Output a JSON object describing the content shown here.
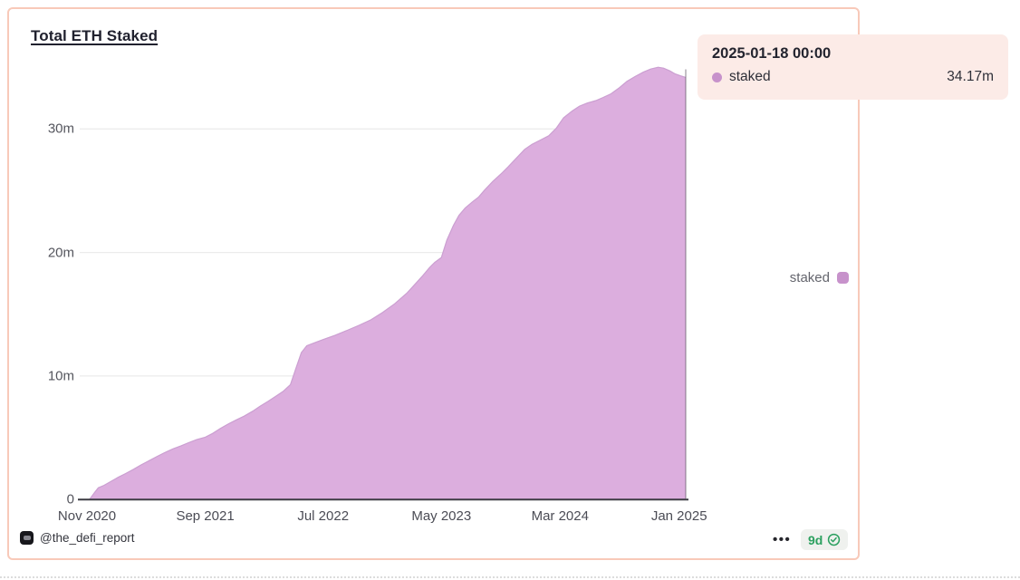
{
  "card": {
    "title": "Total ETH Staked"
  },
  "tooltip": {
    "title": "2025-01-18 00:00",
    "series": "staked",
    "value": "34.17m"
  },
  "legend": {
    "label": "staked"
  },
  "footer": {
    "handle": "@the_defi_report",
    "menu_dots": "•••",
    "age_badge": "9d"
  },
  "colors": {
    "area_fill": "#dcaede",
    "area_edge": "#cb9fd1",
    "series_swatch": "#c792cb",
    "card_border": "#f8c9b9",
    "tooltip_bg": "#fcebe7",
    "axis_line": "#3c3c43",
    "gridline": "#ececec",
    "crosshair": "#5a505f",
    "badge_green": "#2ba05f"
  },
  "chart_data": {
    "type": "area",
    "title": "Total ETH Staked",
    "series_name": "staked",
    "unit": "millions of ETH",
    "grid": true,
    "legend_position": "right",
    "ylim": [
      0,
      36.5
    ],
    "x_axis_start": "2020-11-01",
    "x_ticks": [
      {
        "label": "Nov 2020",
        "date": "2020-11-01"
      },
      {
        "label": "Sep 2021",
        "date": "2021-09-01"
      },
      {
        "label": "Jul 2022",
        "date": "2022-07-01"
      },
      {
        "label": "May 2023",
        "date": "2023-05-01"
      },
      {
        "label": "Mar 2024",
        "date": "2024-03-01"
      },
      {
        "label": "Jan 2025",
        "date": "2025-01-01"
      }
    ],
    "y_ticks": [
      {
        "label": "0",
        "value": 0
      },
      {
        "label": "10m",
        "value": 10
      },
      {
        "label": "20m",
        "value": 20
      },
      {
        "label": "30m",
        "value": 30
      }
    ],
    "hover": {
      "date": "2025-01-18 00:00",
      "value": 34.17,
      "value_label": "34.17m"
    },
    "points": [
      [
        "2020-11-08",
        0.02
      ],
      [
        "2020-11-20",
        0.55
      ],
      [
        "2020-11-30",
        0.95
      ],
      [
        "2020-12-15",
        1.15
      ],
      [
        "2021-01-01",
        1.45
      ],
      [
        "2021-01-20",
        1.8
      ],
      [
        "2021-02-08",
        2.1
      ],
      [
        "2021-03-01",
        2.45
      ],
      [
        "2021-03-20",
        2.8
      ],
      [
        "2021-04-10",
        3.15
      ],
      [
        "2021-05-01",
        3.5
      ],
      [
        "2021-05-20",
        3.8
      ],
      [
        "2021-06-10",
        4.1
      ],
      [
        "2021-07-01",
        4.35
      ],
      [
        "2021-07-20",
        4.6
      ],
      [
        "2021-08-10",
        4.85
      ],
      [
        "2021-09-01",
        5.05
      ],
      [
        "2021-09-20",
        5.35
      ],
      [
        "2021-10-10",
        5.75
      ],
      [
        "2021-11-01",
        6.15
      ],
      [
        "2021-11-20",
        6.45
      ],
      [
        "2021-12-10",
        6.75
      ],
      [
        "2022-01-01",
        7.15
      ],
      [
        "2022-01-20",
        7.55
      ],
      [
        "2022-02-10",
        7.95
      ],
      [
        "2022-03-01",
        8.35
      ],
      [
        "2022-03-20",
        8.75
      ],
      [
        "2022-04-08",
        9.3
      ],
      [
        "2022-04-22",
        10.6
      ],
      [
        "2022-05-06",
        11.9
      ],
      [
        "2022-05-20",
        12.45
      ],
      [
        "2022-06-10",
        12.7
      ],
      [
        "2022-07-01",
        12.95
      ],
      [
        "2022-08-01",
        13.3
      ],
      [
        "2022-09-01",
        13.7
      ],
      [
        "2022-10-01",
        14.1
      ],
      [
        "2022-11-01",
        14.55
      ],
      [
        "2022-12-01",
        15.15
      ],
      [
        "2023-01-01",
        15.85
      ],
      [
        "2023-02-01",
        16.7
      ],
      [
        "2023-02-20",
        17.35
      ],
      [
        "2023-03-12",
        18.05
      ],
      [
        "2023-04-01",
        18.8
      ],
      [
        "2023-04-14",
        19.2
      ],
      [
        "2023-05-01",
        19.6
      ],
      [
        "2023-05-15",
        21.0
      ],
      [
        "2023-06-01",
        22.2
      ],
      [
        "2023-06-15",
        23.0
      ],
      [
        "2023-07-01",
        23.6
      ],
      [
        "2023-07-20",
        24.1
      ],
      [
        "2023-08-05",
        24.5
      ],
      [
        "2023-08-20",
        25.05
      ],
      [
        "2023-09-10",
        25.75
      ],
      [
        "2023-10-01",
        26.35
      ],
      [
        "2023-10-20",
        26.95
      ],
      [
        "2023-11-10",
        27.65
      ],
      [
        "2023-12-01",
        28.35
      ],
      [
        "2023-12-20",
        28.75
      ],
      [
        "2024-01-10",
        29.1
      ],
      [
        "2024-02-01",
        29.45
      ],
      [
        "2024-02-20",
        30.05
      ],
      [
        "2024-03-10",
        30.9
      ],
      [
        "2024-04-01",
        31.45
      ],
      [
        "2024-04-20",
        31.85
      ],
      [
        "2024-05-10",
        32.1
      ],
      [
        "2024-06-01",
        32.3
      ],
      [
        "2024-06-20",
        32.55
      ],
      [
        "2024-07-10",
        32.85
      ],
      [
        "2024-08-01",
        33.35
      ],
      [
        "2024-08-20",
        33.85
      ],
      [
        "2024-09-10",
        34.25
      ],
      [
        "2024-10-01",
        34.6
      ],
      [
        "2024-10-20",
        34.85
      ],
      [
        "2024-11-08",
        35.0
      ],
      [
        "2024-11-22",
        34.92
      ],
      [
        "2024-12-08",
        34.7
      ],
      [
        "2024-12-22",
        34.45
      ],
      [
        "2025-01-05",
        34.3
      ],
      [
        "2025-01-18",
        34.17
      ]
    ]
  }
}
